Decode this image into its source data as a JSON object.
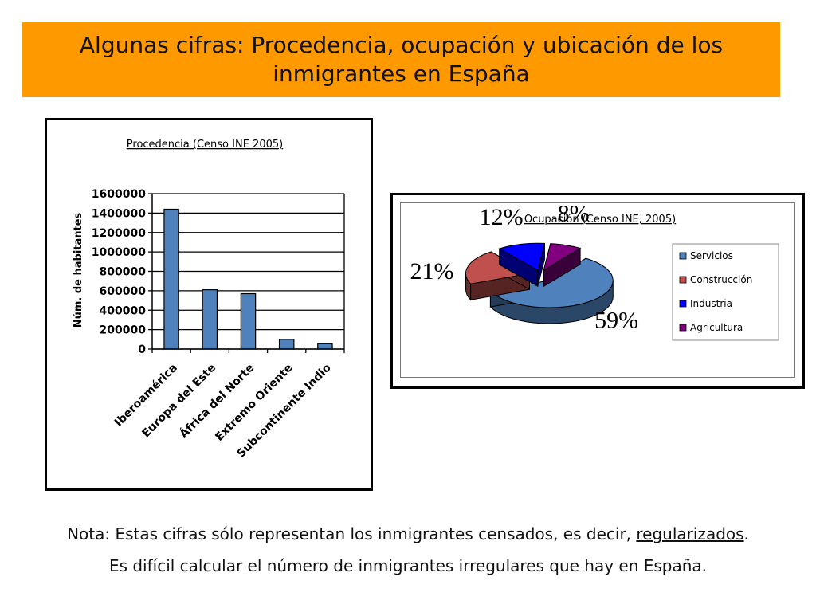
{
  "slide": {
    "title": "Algunas cifras: Procedencia, ocupación y ubicación de los inmigrantes en España"
  },
  "note": {
    "line1_before": "Nota: Estas cifras sólo representan los inmigrantes censados, es decir, ",
    "line1_link": "regularizados",
    "line1_after": ".",
    "line2": "Es difícil calcular el número de inmigrantes irregulares que hay en España."
  },
  "chart_data": [
    {
      "type": "bar",
      "title": "Procedencia (Censo INE 2005)",
      "xlabel": "",
      "ylabel": "Núm. de habitantes",
      "ylim": [
        0,
        1600000
      ],
      "yticks": [
        "0",
        "200000",
        "400000",
        "600000",
        "800000",
        "1000000",
        "1200000",
        "1400000",
        "1600000"
      ],
      "grid": true,
      "categories": [
        "Iberoamérica",
        "Europa del Este",
        "África del Norte",
        "Extremo Oriente",
        "Subcontinente Indio"
      ],
      "values": [
        1440000,
        610000,
        570000,
        100000,
        55000
      ],
      "bar_color": "#4f81bd"
    },
    {
      "type": "pie",
      "title": "Ocupación (Censo INE, 2005)",
      "legend_position": "right",
      "categories": [
        "Servicios",
        "Construcción",
        "Industria",
        "Agricultura"
      ],
      "values": [
        59,
        21,
        12,
        8
      ],
      "labels": [
        "59%",
        "21%",
        "12%",
        "8%"
      ],
      "colors": [
        "#4f81bd",
        "#c0504d",
        "#0000ff",
        "#800080"
      ]
    }
  ]
}
